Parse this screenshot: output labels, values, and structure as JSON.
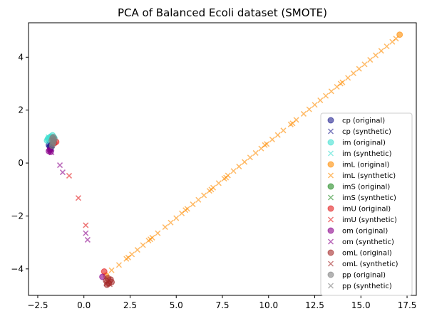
{
  "chart_data": {
    "type": "scatter",
    "title": "PCA of Balanced Ecoli dataset (SMOTE)",
    "xlabel": "",
    "ylabel": "",
    "xlim": [
      -3.0,
      18.0
    ],
    "ylim": [
      -5.0,
      5.3
    ],
    "xticks": [
      -2.5,
      0.0,
      2.5,
      5.0,
      7.5,
      10.0,
      12.5,
      15.0,
      17.5
    ],
    "xtick_labels": [
      "−2.5",
      "0.0",
      "2.5",
      "5.0",
      "7.5",
      "10.0",
      "12.5",
      "15.0",
      "17.5"
    ],
    "yticks": [
      -4,
      -2,
      0,
      2,
      4
    ],
    "ytick_labels": [
      "−4",
      "−2",
      "0",
      "2",
      "4"
    ],
    "grid": false,
    "legend_position": "lower-right",
    "series": [
      {
        "name": "cp (original)",
        "marker": "o",
        "color": "#1f1f8f",
        "points": [
          [
            -1.85,
            0.62
          ],
          [
            -1.75,
            0.7
          ],
          [
            -1.8,
            0.55
          ],
          [
            -1.7,
            0.75
          ],
          [
            -1.9,
            0.68
          ],
          [
            -1.78,
            0.6
          ]
        ]
      },
      {
        "name": "cp (synthetic)",
        "marker": "x",
        "color": "#1f1f8f",
        "points": [
          [
            -1.82,
            0.58
          ],
          [
            -1.72,
            0.66
          ],
          [
            -1.88,
            0.72
          ],
          [
            -1.76,
            0.52
          ]
        ]
      },
      {
        "name": "im (original)",
        "marker": "o",
        "color": "#40e0d0",
        "points": [
          [
            -1.9,
            0.95
          ],
          [
            -1.7,
            1.05
          ],
          [
            -1.6,
            0.95
          ],
          [
            -2.0,
            0.85
          ],
          [
            -1.8,
            1.0
          ],
          [
            -1.65,
            0.85
          ],
          [
            -1.95,
            0.92
          ]
        ]
      },
      {
        "name": "im (synthetic)",
        "marker": "x",
        "color": "#40e0d0",
        "points": [
          [
            -1.85,
            0.9
          ],
          [
            -1.75,
            1.0
          ],
          [
            -1.68,
            0.9
          ],
          [
            -1.92,
            0.98
          ]
        ]
      },
      {
        "name": "imL (original)",
        "marker": "o",
        "color": "#ff8c00",
        "points": [
          [
            1.2,
            -4.25
          ],
          [
            17.1,
            4.85
          ]
        ]
      },
      {
        "name": "imL (synthetic)",
        "marker": "x",
        "color": "#ff8c00",
        "points": [
          [
            1.5,
            -4.05
          ],
          [
            1.9,
            -3.85
          ],
          [
            2.3,
            -3.62
          ],
          [
            2.6,
            -3.45
          ],
          [
            2.9,
            -3.28
          ],
          [
            3.2,
            -3.1
          ],
          [
            3.5,
            -2.93
          ],
          [
            3.7,
            -2.82
          ],
          [
            4.0,
            -2.65
          ],
          [
            4.4,
            -2.42
          ],
          [
            4.7,
            -2.25
          ],
          [
            5.0,
            -2.08
          ],
          [
            5.3,
            -1.9
          ],
          [
            5.6,
            -1.73
          ],
          [
            5.9,
            -1.56
          ],
          [
            6.2,
            -1.39
          ],
          [
            6.5,
            -1.22
          ],
          [
            6.8,
            -1.05
          ],
          [
            7.0,
            -0.93
          ],
          [
            7.3,
            -0.76
          ],
          [
            7.6,
            -0.59
          ],
          [
            7.8,
            -0.47
          ],
          [
            8.1,
            -0.3
          ],
          [
            8.4,
            -0.13
          ],
          [
            8.7,
            0.04
          ],
          [
            9.0,
            0.21
          ],
          [
            9.3,
            0.38
          ],
          [
            9.6,
            0.55
          ],
          [
            9.9,
            0.72
          ],
          [
            10.2,
            0.89
          ],
          [
            10.5,
            1.06
          ],
          [
            10.8,
            1.23
          ],
          [
            11.2,
            1.46
          ],
          [
            11.5,
            1.63
          ],
          [
            11.9,
            1.86
          ],
          [
            12.2,
            2.03
          ],
          [
            12.5,
            2.2
          ],
          [
            12.8,
            2.37
          ],
          [
            13.1,
            2.54
          ],
          [
            13.4,
            2.71
          ],
          [
            13.7,
            2.88
          ],
          [
            14.0,
            3.05
          ],
          [
            14.3,
            3.22
          ],
          [
            14.6,
            3.39
          ],
          [
            14.9,
            3.56
          ],
          [
            15.2,
            3.73
          ],
          [
            15.5,
            3.9
          ],
          [
            15.8,
            4.07
          ],
          [
            16.1,
            4.24
          ],
          [
            16.4,
            4.41
          ],
          [
            16.7,
            4.58
          ],
          [
            16.9,
            4.7
          ],
          [
            7.7,
            -0.55
          ],
          [
            6.9,
            -1.0
          ],
          [
            3.6,
            -2.88
          ],
          [
            11.3,
            1.5
          ],
          [
            13.9,
            3.0
          ],
          [
            9.8,
            0.68
          ],
          [
            5.5,
            -1.78
          ],
          [
            2.4,
            -3.57
          ]
        ]
      },
      {
        "name": "imS (original)",
        "marker": "o",
        "color": "#228b22",
        "points": []
      },
      {
        "name": "imS (synthetic)",
        "marker": "x",
        "color": "#228b22",
        "points": []
      },
      {
        "name": "imU (original)",
        "marker": "o",
        "color": "#e31a1c",
        "points": [
          [
            -1.5,
            0.8
          ],
          [
            -1.6,
            0.75
          ],
          [
            1.1,
            -4.1
          ]
        ]
      },
      {
        "name": "imU (synthetic)",
        "marker": "x",
        "color": "#e31a1c",
        "points": [
          [
            -0.8,
            -0.48
          ],
          [
            -0.3,
            -1.32
          ],
          [
            0.1,
            -2.35
          ]
        ]
      },
      {
        "name": "om (original)",
        "marker": "o",
        "color": "#8b008b",
        "points": [
          [
            -1.9,
            0.45
          ],
          [
            -1.85,
            0.5
          ],
          [
            -1.8,
            0.42
          ],
          [
            1.0,
            -4.3
          ]
        ]
      },
      {
        "name": "om (synthetic)",
        "marker": "x",
        "color": "#8b008b",
        "points": [
          [
            -1.3,
            -0.08
          ],
          [
            -1.15,
            -0.35
          ],
          [
            0.1,
            -2.65
          ],
          [
            0.2,
            -2.9
          ],
          [
            -1.75,
            0.4
          ]
        ]
      },
      {
        "name": "omL (original)",
        "marker": "o",
        "color": "#a52a2a",
        "points": [
          [
            1.2,
            -4.45
          ],
          [
            1.35,
            -4.55
          ],
          [
            1.45,
            -4.4
          ],
          [
            1.25,
            -4.6
          ],
          [
            1.5,
            -4.5
          ],
          [
            1.3,
            -4.35
          ]
        ]
      },
      {
        "name": "omL (synthetic)",
        "marker": "x",
        "color": "#a52a2a",
        "points": [
          [
            1.28,
            -4.5
          ],
          [
            1.4,
            -4.58
          ],
          [
            1.35,
            -4.42
          ],
          [
            1.22,
            -4.55
          ]
        ]
      },
      {
        "name": "pp (original)",
        "marker": "o",
        "color": "#808080",
        "points": [
          [
            -1.7,
            0.95
          ],
          [
            -1.75,
            0.85
          ],
          [
            -1.65,
            0.8
          ],
          [
            -1.7,
            0.72
          ],
          [
            -1.6,
            0.9
          ],
          [
            -1.72,
            0.65
          ],
          [
            -1.65,
            0.98
          ]
        ]
      },
      {
        "name": "pp (synthetic)",
        "marker": "x",
        "color": "#808080",
        "points": [
          [
            -1.68,
            0.88
          ],
          [
            -1.62,
            0.82
          ],
          [
            -1.72,
            0.78
          ]
        ]
      }
    ]
  }
}
